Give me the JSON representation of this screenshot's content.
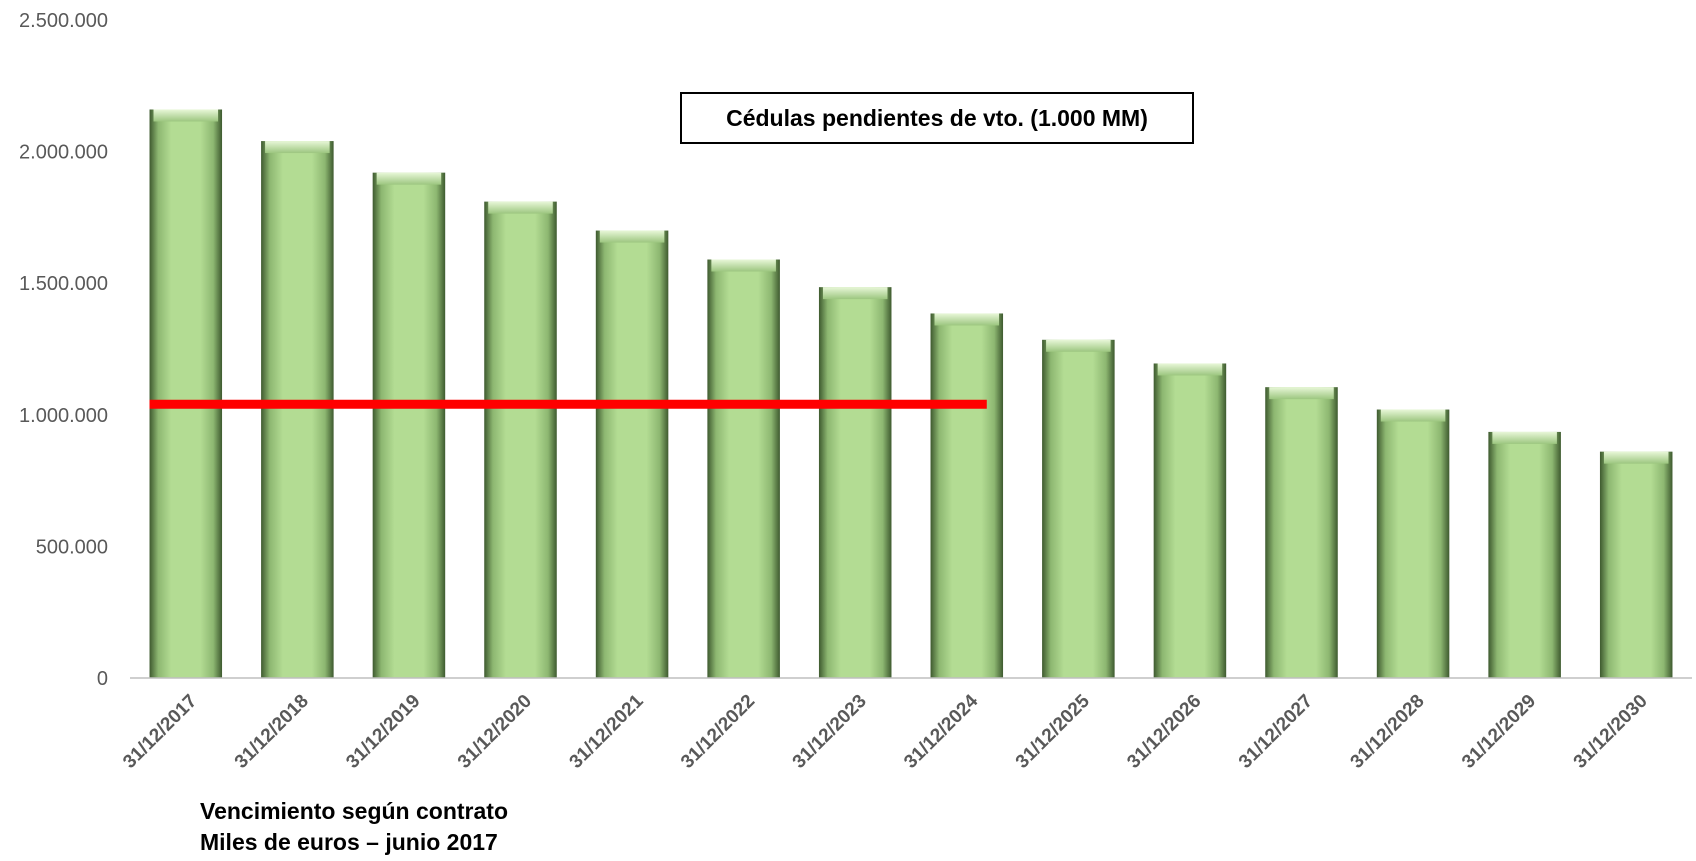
{
  "chart_data": {
    "type": "bar",
    "categories": [
      "31/12/2017",
      "31/12/2018",
      "31/12/2019",
      "31/12/2020",
      "31/12/2021",
      "31/12/2022",
      "31/12/2023",
      "31/12/2024",
      "31/12/2025",
      "31/12/2026",
      "31/12/2027",
      "31/12/2028",
      "31/12/2029",
      "31/12/2030"
    ],
    "values": [
      2160000,
      2040000,
      1920000,
      1810000,
      1700000,
      1590000,
      1485000,
      1385000,
      1285000,
      1195000,
      1105000,
      1020000,
      935000,
      860000
    ],
    "ylim": [
      0,
      2500000
    ],
    "yticks": [
      0,
      500000,
      1000000,
      1500000,
      2000000,
      2500000
    ],
    "ytick_labels": [
      "0",
      "500.000",
      "1.000.000",
      "1.500.000",
      "2.000.000",
      "2.500.000"
    ],
    "reference_line": {
      "label": "Cédulas pendientes de vto. (1.000 MM)",
      "value": 1040000,
      "from": "31/12/2017",
      "to": "31/12/2024",
      "color": "#ff0000"
    },
    "bar_color": "#b3dc93",
    "grid": false,
    "captions": [
      "Vencimiento según contrato",
      "Miles de euros – junio 2017"
    ]
  }
}
